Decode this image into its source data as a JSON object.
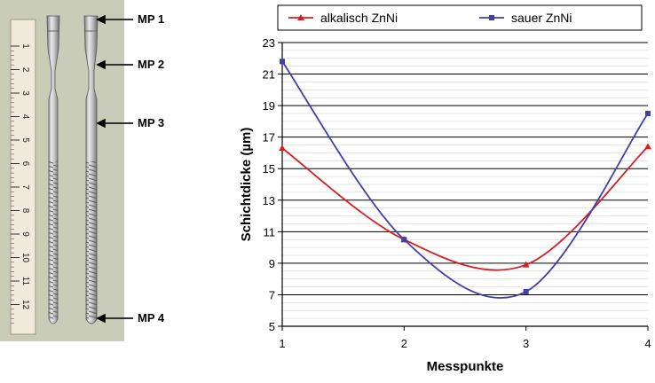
{
  "figure": {
    "measurement_points": [
      "MP 1",
      "MP 2",
      "MP 3",
      "MP 4"
    ],
    "ruler_ticks": [
      "1",
      "2",
      "3",
      "4",
      "5",
      "6",
      "7",
      "8",
      "9",
      "10",
      "11",
      "12"
    ]
  },
  "chart_data": {
    "type": "line",
    "title": "",
    "xlabel": "Messpunkte",
    "ylabel": "Schichtdicke (µm)",
    "x": [
      1,
      2,
      3,
      4
    ],
    "xlim": [
      1,
      4
    ],
    "ylim": [
      5,
      23
    ],
    "yticks": [
      5,
      7,
      9,
      11,
      13,
      15,
      17,
      19,
      21,
      23
    ],
    "grid": "horizontal",
    "legend_position": "top",
    "smoothed": true,
    "series": [
      {
        "name": "alkalisch ZnNi",
        "values": [
          16.3,
          10.5,
          8.9,
          16.4
        ],
        "color": "#d42020",
        "marker": "triangle"
      },
      {
        "name": "sauer ZnNi",
        "values": [
          21.8,
          10.5,
          7.2,
          18.5
        ],
        "color": "#4040a8",
        "marker": "square"
      }
    ]
  }
}
